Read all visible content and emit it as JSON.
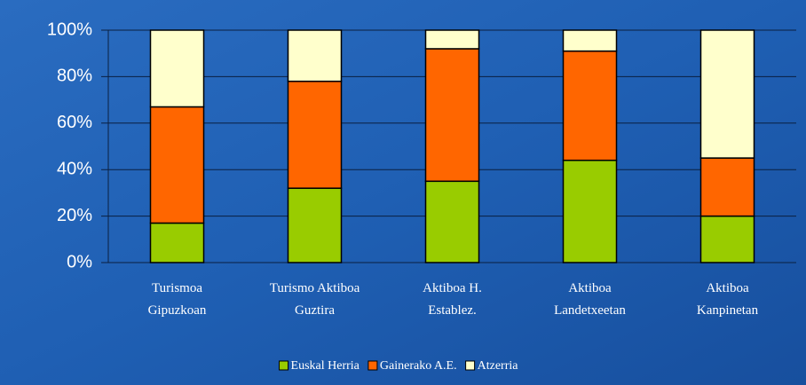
{
  "chart_data": {
    "type": "stacked_bar_percent",
    "categories": [
      [
        "Turismoa",
        "Gipuzkoan"
      ],
      [
        "Turismo Aktiboa",
        "Guztira"
      ],
      [
        "Aktiboa H.",
        "Establez."
      ],
      [
        "Aktiboa",
        "Landetxeetan"
      ],
      [
        "Aktiboa",
        "Kanpinetan"
      ]
    ],
    "series": [
      {
        "name": "Euskal Herria",
        "color": "#99cc00",
        "values": [
          17,
          32,
          35,
          44,
          20
        ]
      },
      {
        "name": "Gainerako A.E.",
        "color": "#ff6600",
        "values": [
          50,
          46,
          57,
          47,
          25
        ]
      },
      {
        "name": "Atzerria",
        "color": "#ffffcc",
        "values": [
          33,
          22,
          8,
          9,
          55
        ]
      }
    ],
    "ylim": [
      0,
      100
    ],
    "yticks": [
      {
        "value": 0,
        "label": "0%"
      },
      {
        "value": 20,
        "label": "20%"
      },
      {
        "value": 40,
        "label": "40%"
      },
      {
        "value": 60,
        "label": "60%"
      },
      {
        "value": 80,
        "label": "80%"
      },
      {
        "value": 100,
        "label": "100%"
      }
    ],
    "grid": true,
    "legend": "bottom"
  }
}
